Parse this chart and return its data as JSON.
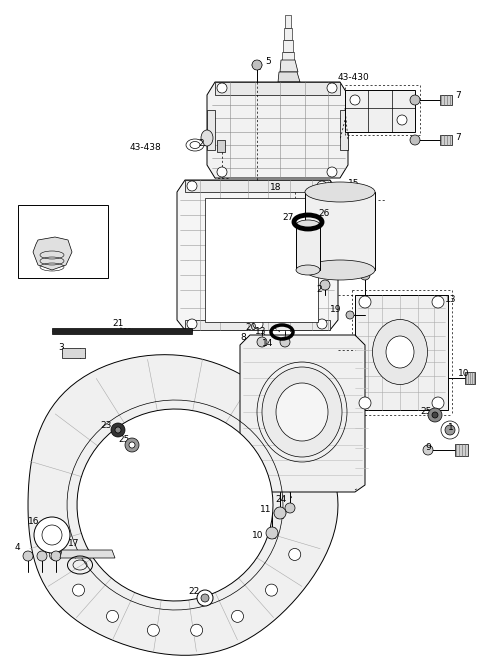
{
  "bg": "#ffffff",
  "lc": "#1a1a1a",
  "fig_w": 4.8,
  "fig_h": 6.6,
  "dpi": 100,
  "xmax": 480,
  "ymax": 660
}
